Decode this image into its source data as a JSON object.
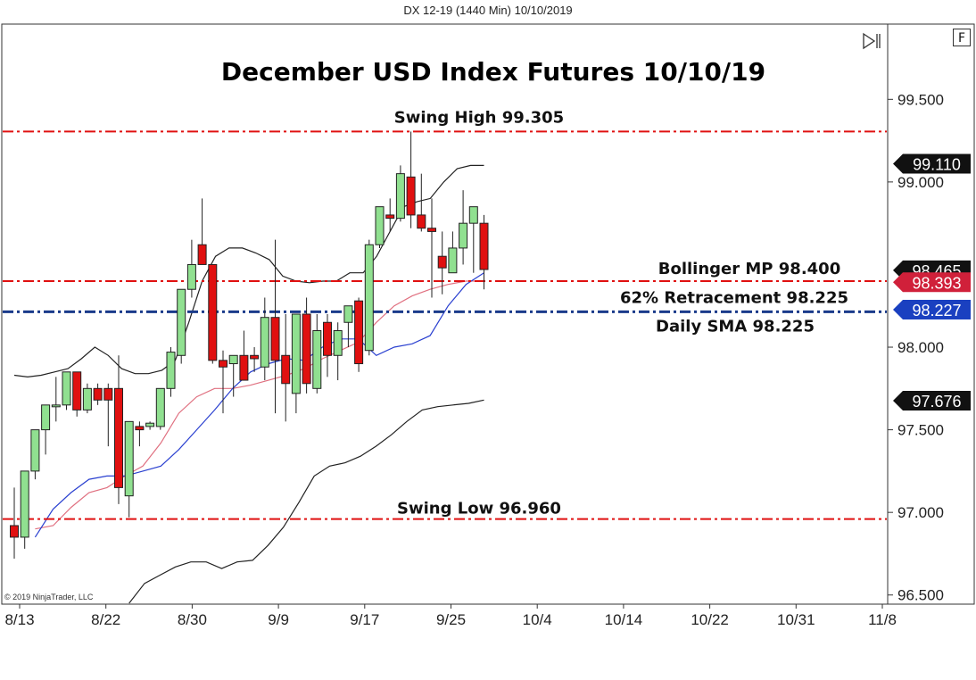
{
  "window": {
    "title": "DX 12-19 (1440 Min)  10/10/2019",
    "mode_button": "F"
  },
  "icons": {
    "scroll_end": "scroll-to-end-icon"
  },
  "copyright": "© 2019 NinjaTrader, LLC",
  "colors": {
    "up_candle": "#90e090",
    "down_candle": "#e01010",
    "level_line": "#e01010",
    "sma_line": "#1a3a8a",
    "bollinger_line": "#222222",
    "midline": "#e07080",
    "sma_curve": "#2a40d0"
  },
  "chart_data": {
    "type": "candlestick",
    "title": "December USD Index Futures 10/10/19",
    "x_ticks": [
      "8/13",
      "8/22",
      "8/30",
      "9/9",
      "9/17",
      "9/25",
      "10/4",
      "10/14",
      "10/22",
      "10/31",
      "11/8"
    ],
    "y_ticks": [
      "99.500",
      "99.000",
      "98.000",
      "97.500",
      "97.000",
      "96.500"
    ],
    "ylim": [
      96.45,
      99.95
    ],
    "candles": [
      {
        "o": 96.92,
        "h": 97.15,
        "l": 96.72,
        "c": 96.85
      },
      {
        "o": 96.85,
        "h": 97.25,
        "l": 96.78,
        "c": 97.25
      },
      {
        "o": 97.25,
        "h": 97.5,
        "l": 97.2,
        "c": 97.5
      },
      {
        "o": 97.5,
        "h": 97.65,
        "l": 97.35,
        "c": 97.65
      },
      {
        "o": 97.65,
        "h": 97.82,
        "l": 97.55,
        "c": 97.65
      },
      {
        "o": 97.65,
        "h": 97.85,
        "l": 97.62,
        "c": 97.85
      },
      {
        "o": 97.85,
        "h": 97.85,
        "l": 97.58,
        "c": 97.62
      },
      {
        "o": 97.62,
        "h": 97.78,
        "l": 97.6,
        "c": 97.75
      },
      {
        "o": 97.75,
        "h": 97.78,
        "l": 97.65,
        "c": 97.68
      },
      {
        "o": 97.75,
        "h": 97.78,
        "l": 97.4,
        "c": 97.68
      },
      {
        "o": 97.75,
        "h": 97.95,
        "l": 97.05,
        "c": 97.15
      },
      {
        "o": 97.1,
        "h": 97.55,
        "l": 96.97,
        "c": 97.55
      },
      {
        "o": 97.52,
        "h": 97.55,
        "l": 97.4,
        "c": 97.5
      },
      {
        "o": 97.52,
        "h": 97.55,
        "l": 97.5,
        "c": 97.54
      },
      {
        "o": 97.52,
        "h": 97.75,
        "l": 97.5,
        "c": 97.75
      },
      {
        "o": 97.75,
        "h": 98.0,
        "l": 97.7,
        "c": 97.97
      },
      {
        "o": 97.95,
        "h": 98.35,
        "l": 97.9,
        "c": 98.35
      },
      {
        "o": 98.35,
        "h": 98.65,
        "l": 98.3,
        "c": 98.5
      },
      {
        "o": 98.62,
        "h": 98.9,
        "l": 98.5,
        "c": 98.5
      },
      {
        "o": 98.5,
        "h": 98.5,
        "l": 97.9,
        "c": 97.92
      },
      {
        "o": 97.92,
        "h": 97.98,
        "l": 97.6,
        "c": 97.88
      },
      {
        "o": 97.9,
        "h": 97.95,
        "l": 97.7,
        "c": 97.95
      },
      {
        "o": 97.95,
        "h": 98.1,
        "l": 97.8,
        "c": 97.8
      },
      {
        "o": 97.95,
        "h": 98.0,
        "l": 97.85,
        "c": 97.93
      },
      {
        "o": 97.88,
        "h": 98.3,
        "l": 97.8,
        "c": 98.18
      },
      {
        "o": 98.18,
        "h": 98.65,
        "l": 97.6,
        "c": 97.92
      },
      {
        "o": 97.95,
        "h": 98.2,
        "l": 97.55,
        "c": 97.78
      },
      {
        "o": 97.72,
        "h": 98.2,
        "l": 97.6,
        "c": 98.2
      },
      {
        "o": 98.2,
        "h": 98.3,
        "l": 97.72,
        "c": 97.78
      },
      {
        "o": 97.75,
        "h": 98.2,
        "l": 97.72,
        "c": 98.1
      },
      {
        "o": 98.15,
        "h": 98.2,
        "l": 97.82,
        "c": 97.95
      },
      {
        "o": 97.95,
        "h": 98.15,
        "l": 97.8,
        "c": 98.1
      },
      {
        "o": 98.15,
        "h": 98.25,
        "l": 98.0,
        "c": 98.25
      },
      {
        "o": 98.28,
        "h": 98.3,
        "l": 97.85,
        "c": 97.9
      },
      {
        "o": 97.98,
        "h": 98.65,
        "l": 97.95,
        "c": 98.62
      },
      {
        "o": 98.62,
        "h": 98.85,
        "l": 98.6,
        "c": 98.85
      },
      {
        "o": 98.8,
        "h": 98.9,
        "l": 98.7,
        "c": 98.78
      },
      {
        "o": 98.78,
        "h": 99.1,
        "l": 98.76,
        "c": 99.05
      },
      {
        "o": 99.03,
        "h": 99.305,
        "l": 98.72,
        "c": 98.8
      },
      {
        "o": 98.8,
        "h": 99.05,
        "l": 98.7,
        "c": 98.72
      },
      {
        "o": 98.72,
        "h": 98.9,
        "l": 98.3,
        "c": 98.7
      },
      {
        "o": 98.55,
        "h": 98.7,
        "l": 98.32,
        "c": 98.48
      },
      {
        "o": 98.45,
        "h": 98.7,
        "l": 98.45,
        "c": 98.6
      },
      {
        "o": 98.6,
        "h": 98.95,
        "l": 98.5,
        "c": 98.75
      },
      {
        "o": 98.75,
        "h": 98.85,
        "l": 98.45,
        "c": 98.85
      },
      {
        "o": 98.75,
        "h": 98.8,
        "l": 98.35,
        "c": 98.47
      }
    ],
    "bollinger_upper": [
      97.83,
      97.82,
      97.83,
      97.85,
      97.87,
      97.93,
      98.0,
      97.95,
      97.87,
      97.84,
      97.84,
      97.86,
      97.92,
      98.15,
      98.4,
      98.55,
      98.6,
      98.6,
      98.57,
      98.53,
      98.43,
      98.4,
      98.39,
      98.4,
      98.4,
      98.45,
      98.45,
      98.55,
      98.7,
      98.85,
      98.88,
      98.9,
      99.0,
      99.08,
      99.1,
      99.1
    ],
    "bollinger_mid": [
      96.9,
      96.92,
      97.03,
      97.12,
      97.15,
      97.22,
      97.28,
      97.42,
      97.6,
      97.7,
      97.75,
      97.75,
      97.77,
      97.8,
      97.83,
      97.87,
      97.93,
      97.98,
      98.03,
      98.15,
      98.25,
      98.31,
      98.35,
      98.38,
      98.4,
      98.4
    ],
    "bollinger_lower": [
      96.45,
      96.57,
      96.62,
      96.67,
      96.7,
      96.7,
      96.66,
      96.7,
      96.71,
      96.8,
      96.91,
      97.06,
      97.22,
      97.28,
      97.3,
      97.34,
      97.4,
      97.47,
      97.55,
      97.62,
      97.64,
      97.65,
      97.66,
      97.68
    ],
    "sma": [
      96.85,
      97.02,
      97.12,
      97.2,
      97.22,
      97.22,
      97.25,
      97.28,
      97.38,
      97.5,
      97.62,
      97.75,
      97.85,
      97.9,
      97.93,
      97.92,
      98.0,
      98.05,
      98.05,
      97.95,
      98.0,
      98.02,
      98.07,
      98.25,
      98.38,
      98.45
    ],
    "levels": [
      {
        "label": "Swing High 99.305",
        "value": 99.305
      },
      {
        "label": "Bollinger MP 98.400",
        "value": 98.4
      },
      {
        "label": "62% Retracement 98.225",
        "value": 98.225
      },
      {
        "label": "Daily SMA 98.225",
        "value": 98.225
      },
      {
        "label": "Swing Low 96.960",
        "value": 96.96
      }
    ],
    "price_markers": [
      {
        "label": "99.110",
        "value": 99.11
      },
      {
        "label": "98.465",
        "value": 98.465
      },
      {
        "label": "98.393",
        "value": 98.393
      },
      {
        "label": "98.227",
        "value": 98.227
      },
      {
        "label": "97.676",
        "value": 97.676
      }
    ]
  }
}
